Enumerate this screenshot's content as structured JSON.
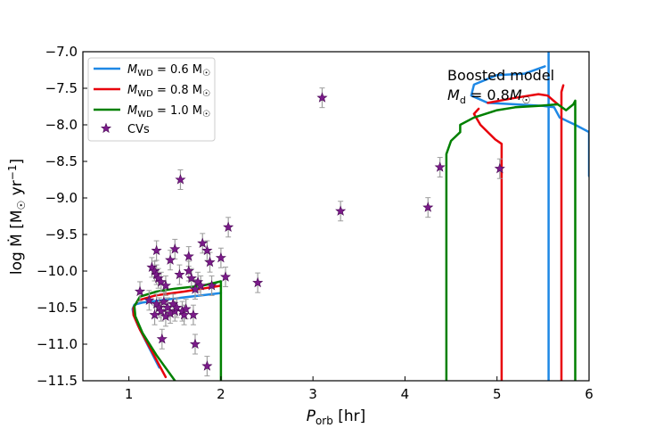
{
  "chart_data": {
    "type": "line",
    "xlabel": "P_orb [hr]",
    "ylabel": "log Ṁ [M☉ yr⁻¹]",
    "xlim": [
      0.5,
      6.0
    ],
    "ylim": [
      -11.5,
      -7.0
    ],
    "xticks": [
      1,
      2,
      3,
      4,
      5,
      6
    ],
    "yticks": [
      -11.5,
      -11.0,
      -10.5,
      -10.0,
      -9.5,
      -9.0,
      -8.5,
      -8.0,
      -7.5,
      -7.0
    ],
    "xtick_labels": [
      "1",
      "2",
      "3",
      "4",
      "5",
      "6"
    ],
    "ytick_labels": [
      "−11.5",
      "−11.0",
      "−10.5",
      "−10.0",
      "−9.5",
      "−9.0",
      "−8.5",
      "−8.0",
      "−7.5",
      "−7.0"
    ],
    "grid": false,
    "legend_position": "top-left",
    "annotation": {
      "line1": "Boosted model",
      "line2": "M_d = 0.8 M☉"
    },
    "series": [
      {
        "name": "M_WD = 0.6 M☉",
        "color": "#1e88e5",
        "segments": [
          [
            [
              1.33,
              -11.32
            ],
            [
              1.2,
              -11.0
            ],
            [
              1.1,
              -10.75
            ],
            [
              1.05,
              -10.6
            ],
            [
              1.04,
              -10.52
            ],
            [
              1.06,
              -10.46
            ],
            [
              1.15,
              -10.43
            ],
            [
              1.35,
              -10.4
            ],
            [
              1.6,
              -10.36
            ],
            [
              1.8,
              -10.33
            ],
            [
              2.0,
              -10.3
            ]
          ],
          [
            [
              5.56,
              -11.5
            ],
            [
              5.56,
              -10.0
            ],
            [
              5.56,
              -7.0
            ]
          ],
          [
            [
              5.52,
              -7.2
            ],
            [
              5.3,
              -7.3
            ],
            [
              5.0,
              -7.32
            ],
            [
              4.75,
              -7.45
            ],
            [
              4.72,
              -7.6
            ],
            [
              4.9,
              -7.7
            ],
            [
              5.2,
              -7.72
            ],
            [
              5.5,
              -7.74
            ],
            [
              5.62,
              -7.76
            ],
            [
              5.68,
              -7.9
            ],
            [
              5.85,
              -8.0
            ],
            [
              6.0,
              -8.1
            ],
            [
              6.0,
              -8.7
            ]
          ]
        ]
      },
      {
        "name": "M_WD = 0.8 M☉",
        "color": "#e8000b",
        "segments": [
          [
            [
              1.4,
              -11.45
            ],
            [
              1.25,
              -11.1
            ],
            [
              1.12,
              -10.8
            ],
            [
              1.05,
              -10.6
            ],
            [
              1.05,
              -10.5
            ],
            [
              1.1,
              -10.4
            ],
            [
              1.3,
              -10.33
            ],
            [
              1.6,
              -10.28
            ],
            [
              1.8,
              -10.24
            ],
            [
              2.0,
              -10.2
            ]
          ],
          [
            [
              5.05,
              -11.5
            ],
            [
              5.05,
              -8.26
            ],
            [
              4.98,
              -8.2
            ],
            [
              4.82,
              -8.0
            ],
            [
              4.75,
              -7.85
            ],
            [
              4.8,
              -7.78
            ]
          ],
          [
            [
              4.9,
              -7.7
            ],
            [
              5.2,
              -7.63
            ],
            [
              5.45,
              -7.58
            ],
            [
              5.55,
              -7.6
            ],
            [
              5.66,
              -7.72
            ]
          ],
          [
            [
              5.7,
              -11.5
            ],
            [
              5.7,
              -7.55
            ],
            [
              5.72,
              -7.46
            ]
          ]
        ]
      },
      {
        "name": "M_WD = 1.0 M☉",
        "color": "#008000",
        "segments": [
          [
            [
              1.5,
              -11.5
            ],
            [
              1.3,
              -11.15
            ],
            [
              1.15,
              -10.85
            ],
            [
              1.07,
              -10.62
            ],
            [
              1.06,
              -10.48
            ],
            [
              1.12,
              -10.35
            ],
            [
              1.3,
              -10.28
            ],
            [
              1.5,
              -10.24
            ],
            [
              1.8,
              -10.2
            ],
            [
              2.0,
              -10.14
            ],
            [
              2.0,
              -11.5
            ]
          ],
          [
            [
              4.45,
              -11.5
            ],
            [
              4.45,
              -8.4
            ],
            [
              4.5,
              -8.22
            ],
            [
              4.6,
              -8.1
            ],
            [
              4.6,
              -8.0
            ],
            [
              4.75,
              -7.9
            ],
            [
              5.0,
              -7.8
            ],
            [
              5.2,
              -7.76
            ]
          ],
          [
            [
              5.2,
              -7.76
            ],
            [
              5.45,
              -7.74
            ],
            [
              5.66,
              -7.72
            ]
          ],
          [
            [
              5.66,
              -7.72
            ],
            [
              5.75,
              -7.8
            ],
            [
              5.83,
              -7.72
            ],
            [
              5.85,
              -7.67
            ],
            [
              5.85,
              -11.5
            ]
          ]
        ]
      },
      {
        "name": "CVs",
        "type": "scatter",
        "color": "#7b1a8a",
        "points": [
          [
            1.12,
            -10.28
          ],
          [
            1.25,
            -9.95
          ],
          [
            1.28,
            -10.0
          ],
          [
            1.3,
            -10.05
          ],
          [
            1.3,
            -9.72
          ],
          [
            1.32,
            -10.1
          ],
          [
            1.35,
            -10.15
          ],
          [
            1.3,
            -10.45
          ],
          [
            1.33,
            -10.5
          ],
          [
            1.35,
            -10.55
          ],
          [
            1.38,
            -10.42
          ],
          [
            1.4,
            -10.62
          ],
          [
            1.42,
            -10.5
          ],
          [
            1.45,
            -10.58
          ],
          [
            1.48,
            -10.45
          ],
          [
            1.5,
            -10.55
          ],
          [
            1.52,
            -10.5
          ],
          [
            1.36,
            -10.93
          ],
          [
            1.4,
            -10.2
          ],
          [
            1.45,
            -9.85
          ],
          [
            1.5,
            -9.7
          ],
          [
            1.55,
            -10.05
          ],
          [
            1.58,
            -10.55
          ],
          [
            1.6,
            -10.6
          ],
          [
            1.62,
            -10.52
          ],
          [
            1.65,
            -10.0
          ],
          [
            1.68,
            -10.1
          ],
          [
            1.7,
            -10.6
          ],
          [
            1.72,
            -10.25
          ],
          [
            1.75,
            -10.15
          ],
          [
            1.78,
            -10.2
          ],
          [
            1.8,
            -9.62
          ],
          [
            1.85,
            -9.72
          ],
          [
            1.88,
            -9.88
          ],
          [
            1.9,
            -10.2
          ],
          [
            1.72,
            -11.0
          ],
          [
            1.85,
            -11.3
          ],
          [
            2.0,
            -9.82
          ],
          [
            2.05,
            -10.08
          ],
          [
            2.08,
            -9.4
          ],
          [
            1.56,
            -8.75
          ],
          [
            1.65,
            -9.8
          ],
          [
            2.4,
            -10.16
          ],
          [
            3.1,
            -7.63
          ],
          [
            3.3,
            -9.18
          ],
          [
            4.25,
            -9.13
          ],
          [
            4.38,
            -8.58
          ],
          [
            5.03,
            -8.6
          ],
          [
            1.22,
            -10.4
          ],
          [
            1.28,
            -10.6
          ]
        ]
      }
    ]
  }
}
